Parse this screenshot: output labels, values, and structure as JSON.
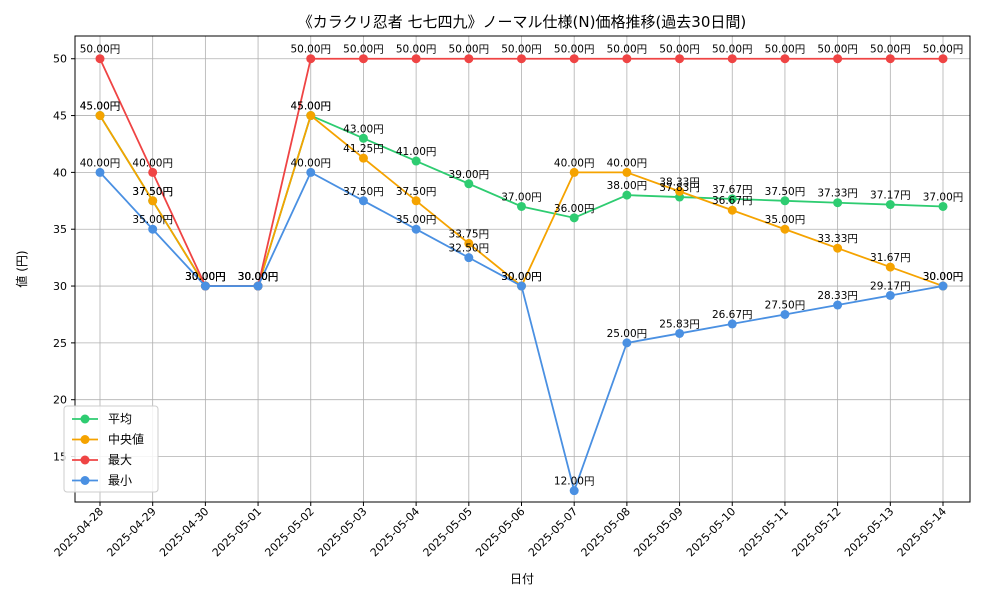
{
  "chart_data": {
    "type": "line",
    "title": "《カラクリ忍者 七七四九》ノーマル仕様(N)価格推移(過去30日間)",
    "xlabel": "日付",
    "ylabel": "値 (円)",
    "ylim": [
      11,
      52
    ],
    "yticks": [
      15,
      20,
      25,
      30,
      35,
      40,
      45,
      50
    ],
    "grid": true,
    "legend_position": "bottom-left",
    "value_suffix": "円",
    "categories": [
      "2025-04-28",
      "2025-04-29",
      "2025-04-30",
      "2025-05-01",
      "2025-05-02",
      "2025-05-03",
      "2025-05-04",
      "2025-05-05",
      "2025-05-06",
      "2025-05-07",
      "2025-05-08",
      "2025-05-09",
      "2025-05-10",
      "2025-05-11",
      "2025-05-12",
      "2025-05-13",
      "2025-05-14"
    ],
    "series": [
      {
        "name": "平均",
        "color": "#2ecc71",
        "values": [
          45.0,
          37.5,
          30.0,
          30.0,
          45.0,
          43.0,
          41.0,
          39.0,
          37.0,
          36.0,
          38.0,
          37.83,
          37.67,
          37.5,
          37.33,
          37.17,
          37.0
        ]
      },
      {
        "name": "中央値",
        "color": "#f5a300",
        "values": [
          45.0,
          37.5,
          30.0,
          30.0,
          45.0,
          41.25,
          37.5,
          33.75,
          30.0,
          40.0,
          40.0,
          38.33,
          36.67,
          35.0,
          33.33,
          31.67,
          30.0
        ]
      },
      {
        "name": "最大",
        "color": "#ef4444",
        "values": [
          50.0,
          40.0,
          30.0,
          30.0,
          50.0,
          50.0,
          50.0,
          50.0,
          50.0,
          50.0,
          50.0,
          50.0,
          50.0,
          50.0,
          50.0,
          50.0,
          50.0
        ]
      },
      {
        "name": "最小",
        "color": "#4a90e2",
        "values": [
          40.0,
          35.0,
          30.0,
          30.0,
          40.0,
          37.5,
          35.0,
          32.5,
          30.0,
          12.0,
          25.0,
          25.83,
          26.67,
          27.5,
          28.33,
          29.17,
          30.0
        ]
      }
    ]
  }
}
